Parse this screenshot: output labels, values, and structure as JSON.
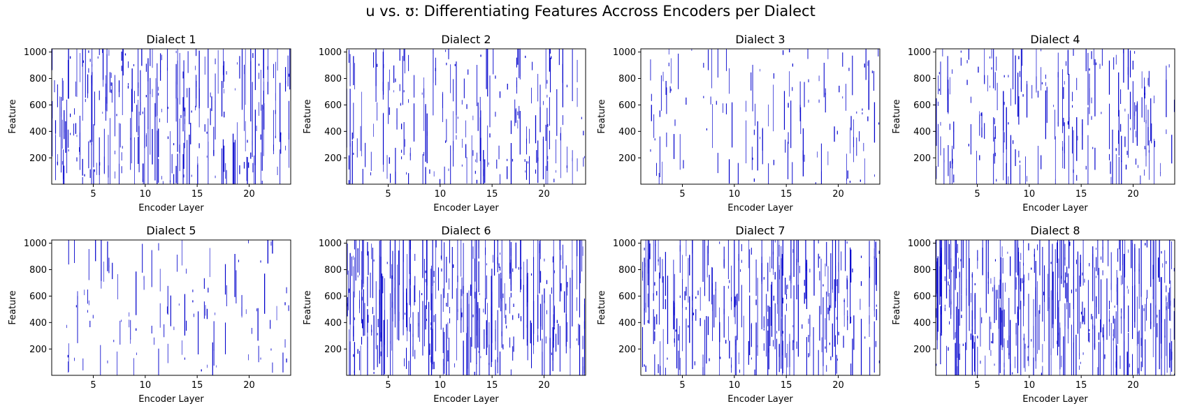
{
  "figure": {
    "title": "u vs. ʊ: Differentiating Features Accross Encoders per Dialect"
  },
  "colors": {
    "mark": "#0000cc",
    "axes": "#000000",
    "background": "#ffffff"
  },
  "chart_data": [
    {
      "type": "heatmap",
      "title": "Dialect 1",
      "xlabel": "Encoder Layer",
      "ylabel": "Feature",
      "xlim": [
        1,
        24
      ],
      "ylim": [
        1,
        1024
      ],
      "xticks": [
        5,
        10,
        15,
        20
      ],
      "yticks": [
        200,
        400,
        600,
        800,
        1000
      ],
      "grid": false,
      "density": 0.52,
      "seed": 11
    },
    {
      "type": "heatmap",
      "title": "Dialect 2",
      "xlabel": "Encoder Layer",
      "ylabel": "Feature",
      "xlim": [
        1,
        24
      ],
      "ylim": [
        1,
        1024
      ],
      "xticks": [
        5,
        10,
        15,
        20
      ],
      "yticks": [
        200,
        400,
        600,
        800,
        1000
      ],
      "grid": false,
      "density": 0.36,
      "seed": 23
    },
    {
      "type": "heatmap",
      "title": "Dialect 3",
      "xlabel": "Encoder Layer",
      "ylabel": "Feature",
      "xlim": [
        1,
        24
      ],
      "ylim": [
        1,
        1024
      ],
      "xticks": [
        5,
        10,
        15,
        20
      ],
      "yticks": [
        200,
        400,
        600,
        800,
        1000
      ],
      "grid": false,
      "density": 0.17,
      "seed": 37
    },
    {
      "type": "heatmap",
      "title": "Dialect 4",
      "xlabel": "Encoder Layer",
      "ylabel": "Feature",
      "xlim": [
        1,
        24
      ],
      "ylim": [
        1,
        1024
      ],
      "xticks": [
        5,
        10,
        15,
        20
      ],
      "yticks": [
        200,
        400,
        600,
        800,
        1000
      ],
      "grid": false,
      "density": 0.38,
      "seed": 41
    },
    {
      "type": "heatmap",
      "title": "Dialect 5",
      "xlabel": "Encoder Layer",
      "ylabel": "Feature",
      "xlim": [
        1,
        24
      ],
      "ylim": [
        1,
        1024
      ],
      "xticks": [
        5,
        10,
        15,
        20
      ],
      "yticks": [
        200,
        400,
        600,
        800,
        1000
      ],
      "grid": false,
      "density": 0.14,
      "seed": 53
    },
    {
      "type": "heatmap",
      "title": "Dialect 6",
      "xlabel": "Encoder Layer",
      "ylabel": "Feature",
      "xlim": [
        1,
        24
      ],
      "ylim": [
        1,
        1024
      ],
      "xticks": [
        5,
        10,
        15,
        20
      ],
      "yticks": [
        200,
        400,
        600,
        800,
        1000
      ],
      "grid": false,
      "density": 0.66,
      "seed": 67
    },
    {
      "type": "heatmap",
      "title": "Dialect 7",
      "xlabel": "Encoder Layer",
      "ylabel": "Feature",
      "xlim": [
        1,
        24
      ],
      "ylim": [
        1,
        1024
      ],
      "xticks": [
        5,
        10,
        15,
        20
      ],
      "yticks": [
        200,
        400,
        600,
        800,
        1000
      ],
      "grid": false,
      "density": 0.58,
      "seed": 79
    },
    {
      "type": "heatmap",
      "title": "Dialect 8",
      "xlabel": "Encoder Layer",
      "ylabel": "Feature",
      "xlim": [
        1,
        24
      ],
      "ylim": [
        1,
        1024
      ],
      "xticks": [
        5,
        10,
        15,
        20
      ],
      "yticks": [
        200,
        400,
        600,
        800,
        1000
      ],
      "grid": false,
      "density": 0.68,
      "seed": 97
    }
  ]
}
